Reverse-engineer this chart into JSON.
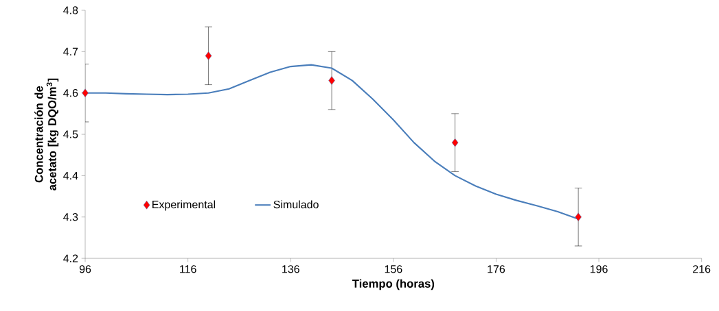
{
  "chart_data": {
    "type": "scatter",
    "xlabel": "Tiempo (horas)",
    "ylabel": "Concentración de acetato [kg DQO/m$^{3}$]",
    "xlim": [
      96,
      216
    ],
    "xticks": [
      96,
      116,
      136,
      156,
      176,
      196,
      216
    ],
    "ylim": [
      4.2,
      4.8
    ],
    "yticks": [
      4.2,
      4.3,
      4.4,
      4.5,
      4.6,
      4.7,
      4.8
    ],
    "grid": false,
    "legend": "bottom left",
    "series": [
      {
        "name": "Experimental",
        "marker": "diamond",
        "color": "#ff0000",
        "x": [
          96,
          120,
          144,
          168,
          192
        ],
        "values": [
          4.6,
          4.69,
          4.63,
          4.48,
          4.3
        ],
        "errors": [
          0.07,
          0.07,
          0.07,
          0.07,
          0.07
        ]
      },
      {
        "name": "Simulado",
        "type": "line",
        "marker": "none",
        "line_style": "solid",
        "color": "#4a7ebb",
        "x": [
          96,
          100,
          104,
          108,
          112,
          116,
          120,
          124,
          128,
          132,
          136,
          140,
          144,
          148,
          152,
          156,
          160,
          164,
          168,
          172,
          176,
          180,
          184,
          188,
          192
        ],
        "values": [
          4.6,
          4.6,
          4.598,
          4.597,
          4.596,
          4.597,
          4.6,
          4.61,
          4.63,
          4.65,
          4.664,
          4.668,
          4.66,
          4.63,
          4.585,
          4.535,
          4.48,
          4.435,
          4.4,
          4.375,
          4.355,
          4.34,
          4.327,
          4.313,
          4.295
        ]
      }
    ]
  }
}
